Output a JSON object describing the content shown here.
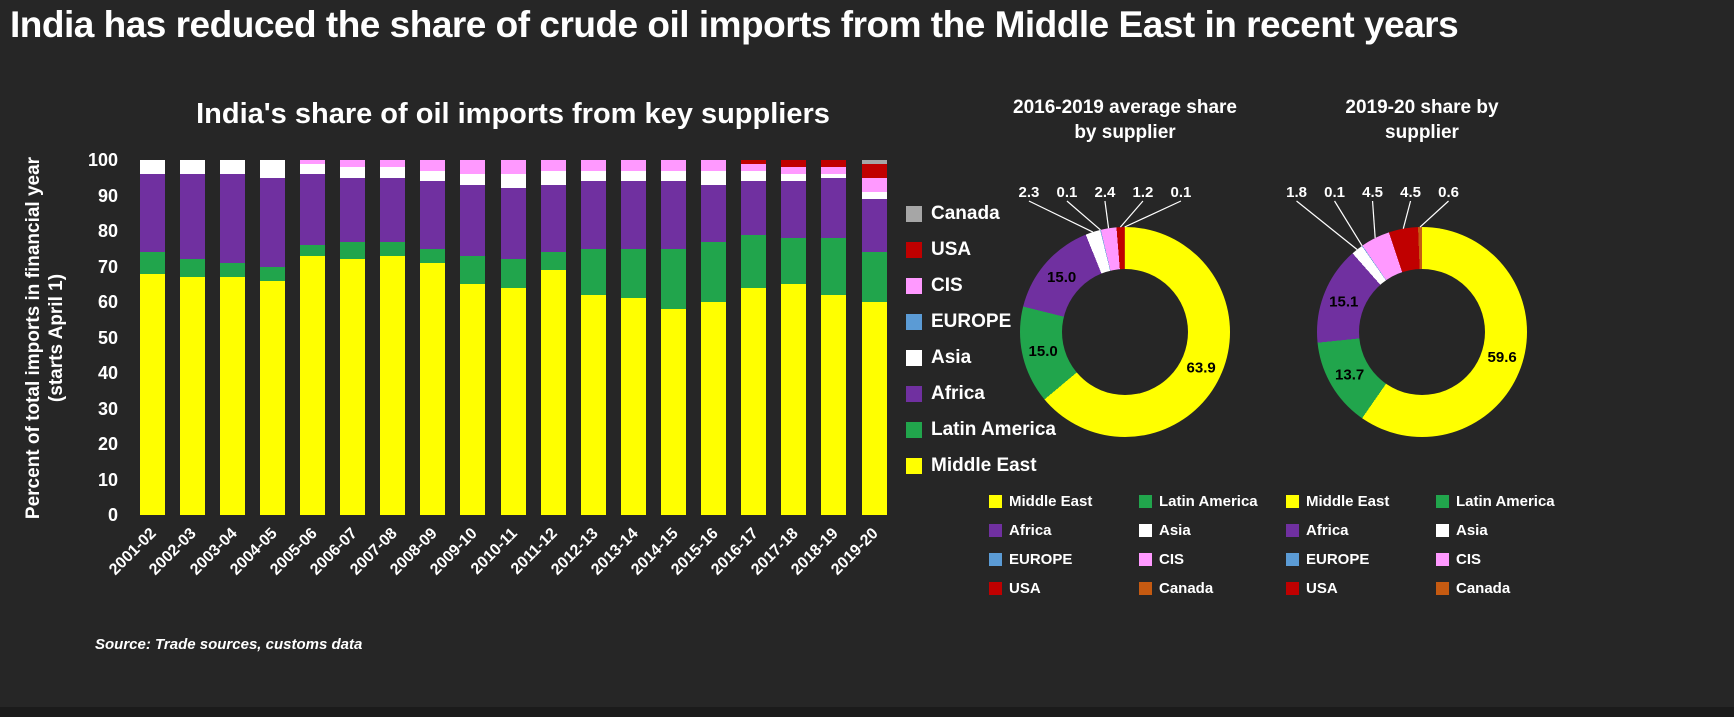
{
  "page": {
    "title": "India has reduced the share of crude oil imports from the Middle East in recent years",
    "source_note": "Source: Trade sources, customs data",
    "background": "#262626"
  },
  "chart_data": [
    {
      "type": "bar",
      "stacked": true,
      "title": "India's share of oil imports from key suppliers",
      "ylabel": "Percent of total imports in financial year (starts April 1)",
      "ylabel_line1": "Percent of total imports in financial year",
      "ylabel_line2": "(starts April 1)",
      "ylim": [
        0,
        100
      ],
      "yticks": [
        0,
        10,
        20,
        30,
        40,
        50,
        60,
        70,
        80,
        90,
        100
      ],
      "grid": false,
      "categories": [
        "2001-02",
        "2002-03",
        "2003-04",
        "2004-05",
        "2005-06",
        "2006-07",
        "2007-08",
        "2008-09",
        "2009-10",
        "2010-11",
        "2011-12",
        "2012-13",
        "2013-14",
        "2014-15",
        "2015-16",
        "2016-17",
        "2017-18",
        "2018-19",
        "2019-20"
      ],
      "series": [
        {
          "name": "Middle East",
          "color": "#FFFF00",
          "values": [
            68,
            67,
            67,
            66,
            73,
            72,
            73,
            71,
            65,
            64,
            69,
            62,
            61,
            58,
            60,
            64,
            65,
            62,
            60
          ]
        },
        {
          "name": "Latin America",
          "color": "#21A54C",
          "values": [
            6,
            5,
            4,
            4,
            3,
            5,
            4,
            4,
            8,
            8,
            5,
            13,
            14,
            17,
            17,
            15,
            13,
            16,
            14
          ]
        },
        {
          "name": "Africa",
          "color": "#7030A0",
          "values": [
            22,
            24,
            25,
            25,
            20,
            18,
            18,
            19,
            20,
            20,
            19,
            19,
            19,
            19,
            16,
            15,
            16,
            17,
            15
          ]
        },
        {
          "name": "Asia",
          "color": "#FFFFFF",
          "values": [
            4,
            4,
            4,
            5,
            3,
            3,
            3,
            3,
            3,
            4,
            4,
            3,
            3,
            3,
            4,
            3,
            2,
            1,
            2
          ]
        },
        {
          "name": "EUROPE",
          "color": "#5B9BD5",
          "values": [
            0,
            0,
            0,
            0,
            0,
            0,
            0,
            0,
            0,
            0,
            0,
            0,
            0,
            0,
            0,
            0,
            0,
            0,
            0
          ]
        },
        {
          "name": "CIS",
          "color": "#FF99FF",
          "values": [
            0,
            0,
            0,
            0,
            1,
            2,
            2,
            3,
            4,
            4,
            3,
            3,
            3,
            3,
            3,
            2,
            2,
            2,
            4
          ]
        },
        {
          "name": "USA",
          "color": "#C00000",
          "values": [
            0,
            0,
            0,
            0,
            0,
            0,
            0,
            0,
            0,
            0,
            0,
            0,
            0,
            0,
            0,
            1,
            2,
            2,
            4
          ]
        },
        {
          "name": "Canada",
          "color": "#A6A6A6",
          "values": [
            0,
            0,
            0,
            0,
            0,
            0,
            0,
            0,
            0,
            0,
            0,
            0,
            0,
            0,
            0,
            0,
            0,
            0,
            1
          ]
        }
      ],
      "legend": [
        {
          "label": "Canada",
          "color": "#A6A6A6"
        },
        {
          "label": "USA",
          "color": "#C00000"
        },
        {
          "label": "CIS",
          "color": "#FF99FF"
        },
        {
          "label": "EUROPE",
          "color": "#5B9BD5"
        },
        {
          "label": "Asia",
          "color": "#FFFFFF"
        },
        {
          "label": "Africa",
          "color": "#7030A0"
        },
        {
          "label": "Latin America",
          "color": "#21A54C"
        },
        {
          "label": "Middle East",
          "color": "#FFFF00"
        }
      ]
    },
    {
      "type": "pie",
      "subtype": "donut",
      "title": "2016-2019 average share by supplier",
      "labels": [
        "Middle East",
        "Latin America",
        "Africa",
        "Asia",
        "EUROPE",
        "CIS",
        "USA",
        "Canada"
      ],
      "values": [
        63.9,
        15.0,
        15.0,
        2.3,
        0.1,
        2.4,
        1.2,
        0.1
      ],
      "colors": [
        "#FFFF00",
        "#21A54C",
        "#7030A0",
        "#FFFFFF",
        "#5B9BD5",
        "#FF99FF",
        "#C00000",
        "#C55A11"
      ],
      "legend": [
        {
          "label": "Middle East",
          "color": "#FFFF00"
        },
        {
          "label": "Latin America",
          "color": "#21A54C"
        },
        {
          "label": "Africa",
          "color": "#7030A0"
        },
        {
          "label": "Asia",
          "color": "#FFFFFF"
        },
        {
          "label": "EUROPE",
          "color": "#5B9BD5"
        },
        {
          "label": "CIS",
          "color": "#FF99FF"
        },
        {
          "label": "USA",
          "color": "#C00000"
        },
        {
          "label": "Canada",
          "color": "#C55A11"
        }
      ]
    },
    {
      "type": "pie",
      "subtype": "donut",
      "title": "2019-20 share by supplier",
      "labels": [
        "Middle East",
        "Latin America",
        "Africa",
        "Asia",
        "EUROPE",
        "CIS",
        "USA",
        "Canada"
      ],
      "values": [
        59.6,
        13.7,
        15.1,
        1.8,
        0.1,
        4.5,
        4.5,
        0.6
      ],
      "colors": [
        "#FFFF00",
        "#21A54C",
        "#7030A0",
        "#FFFFFF",
        "#5B9BD5",
        "#FF99FF",
        "#C00000",
        "#C55A11"
      ],
      "legend": [
        {
          "label": "Middle East",
          "color": "#FFFF00"
        },
        {
          "label": "Latin America",
          "color": "#21A54C"
        },
        {
          "label": "Africa",
          "color": "#7030A0"
        },
        {
          "label": "Asia",
          "color": "#FFFFFF"
        },
        {
          "label": "EUROPE",
          "color": "#5B9BD5"
        },
        {
          "label": "CIS",
          "color": "#FF99FF"
        },
        {
          "label": "USA",
          "color": "#C00000"
        },
        {
          "label": "Canada",
          "color": "#C55A11"
        }
      ]
    }
  ]
}
